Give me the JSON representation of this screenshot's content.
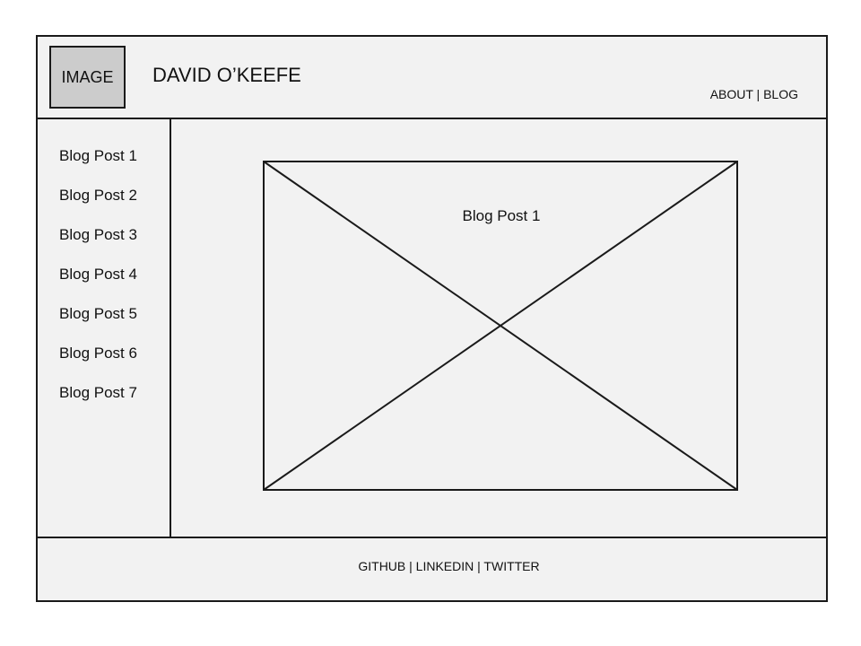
{
  "header": {
    "logo_label": "IMAGE",
    "title": "DAVID O’KEEFE",
    "nav": {
      "about": "ABOUT",
      "separator": " | ",
      "blog": "BLOG"
    }
  },
  "sidebar": {
    "items": [
      {
        "label": "Blog Post 1"
      },
      {
        "label": "Blog Post 2"
      },
      {
        "label": "Blog Post 3"
      },
      {
        "label": "Blog Post 4"
      },
      {
        "label": "Blog Post 5"
      },
      {
        "label": "Blog Post 6"
      },
      {
        "label": "Blog Post 7"
      }
    ]
  },
  "main": {
    "post_title": "Blog Post 1"
  },
  "footer": {
    "github": "GITHUB",
    "linkedin": "LINKEDIN",
    "twitter": "TWITTER",
    "separator": " | "
  },
  "colors": {
    "background": "#f2f2f2",
    "logo_fill": "#cccccc",
    "line": "#1a1a1a"
  }
}
